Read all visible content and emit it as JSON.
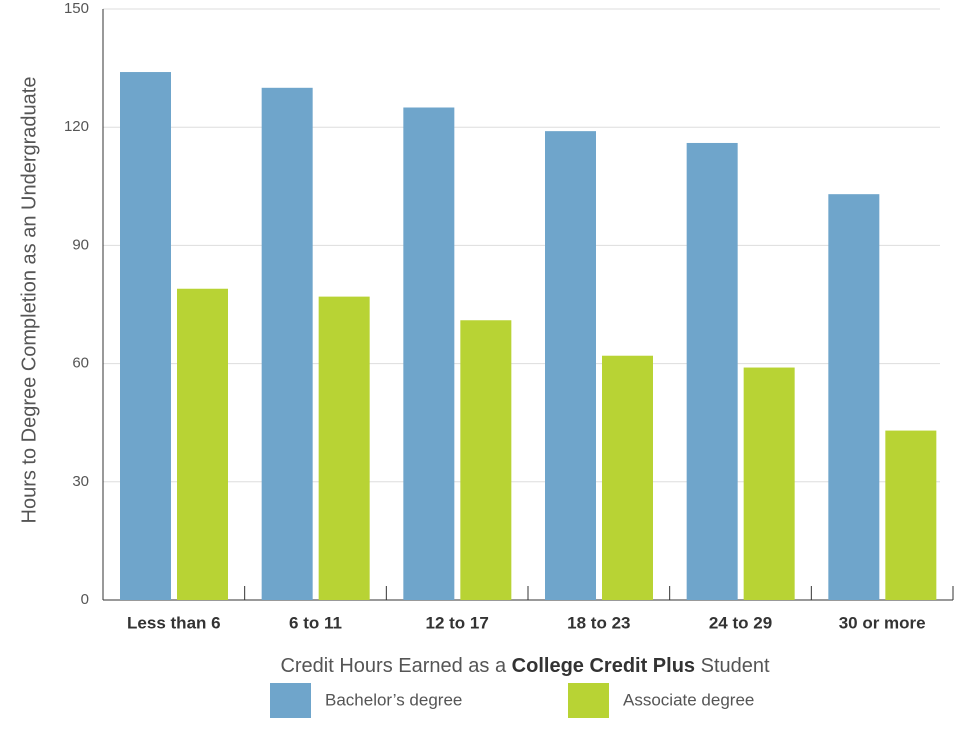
{
  "chart_data": {
    "type": "bar",
    "ylabel": "Hours to Degree Completion as an Undergraduate",
    "xlabel": [
      "Credit Hours Earned as a",
      "College Credit Plus",
      "Student"
    ],
    "categories": [
      "Less than 6",
      "6 to 11",
      "12 to 17",
      "18 to 23",
      "24 to 29",
      "30 or more"
    ],
    "series": [
      {
        "name": "Bachelor’s degree",
        "color": "#6fa5cb",
        "values": [
          134,
          130,
          125,
          119,
          116,
          103
        ]
      },
      {
        "name": "Associate degree",
        "color": "#b8d334",
        "values": [
          79,
          77,
          71,
          62,
          59,
          43
        ]
      }
    ],
    "ylim": [
      0,
      150
    ],
    "yticks": [
      0,
      30,
      60,
      90,
      120,
      150
    ],
    "grid": true,
    "legend": "bottom"
  }
}
